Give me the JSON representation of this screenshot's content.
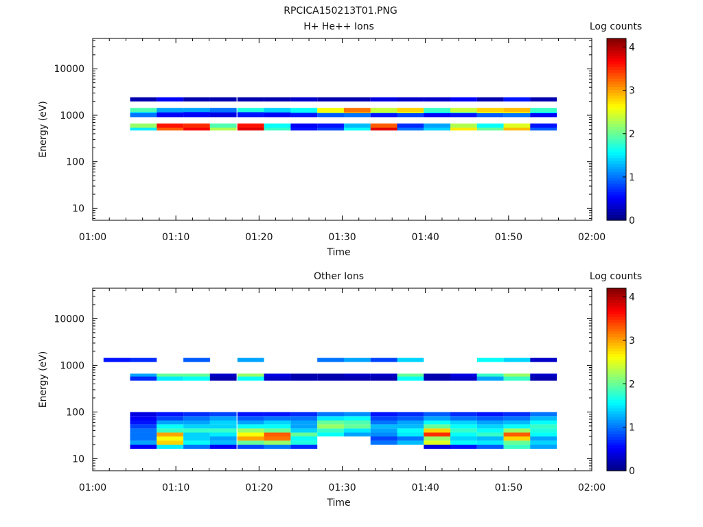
{
  "page_title": "RPCICA150213T01.PNG",
  "chart_data": [
    {
      "type": "heatmap",
      "title": "H+ He++ Ions",
      "xlabel": "Time",
      "ylabel": "Energy (eV)",
      "x_range": [
        "01:00",
        "02:00"
      ],
      "x_ticks": [
        "01:00",
        "01:10",
        "01:20",
        "01:30",
        "01:40",
        "01:50",
        "02:00"
      ],
      "y_scale": "log",
      "y_range": [
        5.5,
        45000
      ],
      "y_ticks": [
        10,
        100,
        1000,
        10000
      ],
      "y_tick_labels": [
        "10",
        "100",
        "1000",
        "10000"
      ],
      "colorbar": {
        "label": "Log counts",
        "range": [
          0,
          4.2
        ],
        "ticks": [
          0,
          1,
          2,
          3,
          4
        ],
        "tick_labels": [
          "0",
          "1",
          "2",
          "3",
          "4"
        ],
        "colormap": "jet"
      },
      "cell_start_minutes": [
        1.3,
        4.5,
        7.7,
        10.9,
        14.1,
        17.4,
        20.6,
        23.8,
        27.0,
        30.2,
        33.4,
        36.6,
        39.8,
        43.0,
        46.2,
        49.4,
        52.6,
        55.8
      ],
      "rows": [
        {
          "e": 520,
          "v": [
            0,
            1.5,
            3.3,
            3.7,
            2.3,
            3.8,
            1.8,
            0.6,
            0.8,
            1.6,
            3.8,
            1.0,
            1.4,
            2.7,
            2.0,
            2.9,
            0.9,
            0
          ]
        },
        {
          "e": 600,
          "v": [
            0,
            2.2,
            3.6,
            3.5,
            1.9,
            3.6,
            1.6,
            0.5,
            0.6,
            1.3,
            3.3,
            0.7,
            1.2,
            2.3,
            1.6,
            2.5,
            0.6,
            0
          ]
        },
        {
          "e": 1150,
          "v": [
            0,
            1.4,
            0.8,
            0.6,
            0.7,
            0.8,
            0.9,
            1.3,
            2.4,
            3.0,
            2.2,
            2.5,
            1.6,
            2.0,
            2.5,
            2.7,
            1.6,
            0
          ]
        },
        {
          "e": 1300,
          "v": [
            0,
            1.9,
            1.2,
            1.2,
            1.0,
            1.7,
            1.4,
            1.6,
            2.6,
            3.2,
            2.4,
            2.8,
            1.8,
            2.4,
            2.8,
            2.9,
            1.8,
            0
          ]
        },
        {
          "e": 1000,
          "v": [
            0,
            1.0,
            0.5,
            0.5,
            0.4,
            0.6,
            0.5,
            0.6,
            0.9,
            1.0,
            0.6,
            0.8,
            0.5,
            0.6,
            0.9,
            1.0,
            0.5,
            0
          ]
        },
        {
          "e": 2200,
          "v": [
            0,
            0.2,
            0.5,
            0.2,
            0.2,
            0.2,
            0.2,
            0.3,
            0.2,
            0.2,
            0.4,
            0.3,
            0.3,
            0.5,
            0.2,
            0.6,
            0.2,
            0
          ]
        }
      ]
    },
    {
      "type": "heatmap",
      "title": "Other Ions",
      "xlabel": "Time",
      "ylabel": "Energy (eV)",
      "x_range": [
        "01:00",
        "02:00"
      ],
      "x_ticks": [
        "01:00",
        "01:10",
        "01:20",
        "01:30",
        "01:40",
        "01:50",
        "02:00"
      ],
      "y_scale": "log",
      "y_range": [
        5.5,
        45000
      ],
      "y_ticks": [
        10,
        100,
        1000,
        10000
      ],
      "y_tick_labels": [
        "10",
        "100",
        "1000",
        "10000"
      ],
      "colorbar": {
        "label": "Log counts",
        "range": [
          0,
          4.2
        ],
        "ticks": [
          0,
          1,
          2,
          3,
          4
        ],
        "tick_labels": [
          "0",
          "1",
          "2",
          "3",
          "4"
        ],
        "colormap": "jet"
      },
      "cell_start_minutes": [
        1.3,
        4.5,
        7.7,
        10.9,
        14.1,
        17.4,
        20.6,
        23.8,
        27.0,
        30.2,
        33.4,
        36.6,
        39.8,
        43.0,
        46.2,
        49.4,
        52.6,
        55.8
      ],
      "rows": [
        {
          "e": 18,
          "v": [
            0,
            0.5,
            1.5,
            1.0,
            0.5,
            0.8,
            1.0,
            0.7,
            0,
            0,
            0,
            0,
            0.4,
            0.6,
            0.9,
            1.8,
            1.2,
            0
          ]
        },
        {
          "e": 22,
          "v": [
            0,
            1.2,
            2.8,
            1.6,
            1.3,
            2.0,
            2.2,
            1.7,
            0,
            0,
            1.0,
            1.3,
            2.5,
            1.6,
            1.5,
            2.0,
            1.4,
            0
          ]
        },
        {
          "e": 27,
          "v": [
            0,
            1.0,
            2.6,
            1.4,
            1.2,
            3.0,
            3.2,
            1.6,
            0,
            0,
            0.8,
            1.0,
            2.2,
            1.4,
            1.3,
            2.8,
            1.2,
            0
          ]
        },
        {
          "e": 33,
          "v": [
            0,
            1.0,
            3.0,
            1.4,
            1.5,
            2.6,
            3.3,
            2.0,
            1.6,
            1.2,
            1.1,
            1.5,
            3.5,
            1.6,
            1.8,
            3.3,
            1.6,
            0
          ]
        },
        {
          "e": 40,
          "v": [
            0,
            1.0,
            1.8,
            1.8,
            1.8,
            2.2,
            2.0,
            1.4,
            1.8,
            1.5,
            1.2,
            1.6,
            2.8,
            1.8,
            1.6,
            2.2,
            1.7,
            0
          ]
        },
        {
          "e": 49,
          "v": [
            0,
            0.8,
            1.6,
            1.4,
            1.4,
            1.6,
            1.6,
            1.2,
            2.2,
            2.0,
            1.3,
            1.3,
            2.0,
            1.6,
            1.4,
            1.6,
            1.8,
            0
          ]
        },
        {
          "e": 60,
          "v": [
            0,
            0.6,
            1.2,
            1.2,
            1.4,
            1.2,
            1.4,
            1.2,
            2.0,
            1.9,
            1.0,
            1.2,
            1.6,
            1.4,
            1.2,
            1.3,
            1.6,
            0
          ]
        },
        {
          "e": 73,
          "v": [
            0,
            0.5,
            0.8,
            1.0,
            1.2,
            0.9,
            1.0,
            1.0,
            1.5,
            1.6,
            0.8,
            0.9,
            1.2,
            1.0,
            0.9,
            1.0,
            1.3,
            0
          ]
        },
        {
          "e": 90,
          "v": [
            0,
            0.4,
            0.6,
            0.7,
            0.8,
            0.6,
            0.6,
            0.7,
            1.0,
            1.1,
            0.6,
            0.7,
            0.9,
            0.7,
            0.6,
            0.7,
            1.0,
            0
          ]
        },
        {
          "e": 600,
          "v": [
            0,
            1.2,
            2.0,
            2.0,
            0.3,
            2.2,
            0.4,
            0.2,
            0.2,
            0.3,
            0.3,
            2.0,
            0.2,
            0.4,
            1.8,
            2.2,
            0.3,
            0
          ]
        },
        {
          "e": 520,
          "v": [
            0,
            0.7,
            1.5,
            1.6,
            0.2,
            1.6,
            0.3,
            0.2,
            0.2,
            0.2,
            0.2,
            1.6,
            0.2,
            0.3,
            1.2,
            1.8,
            0.2,
            0
          ]
        },
        {
          "e": 1300,
          "v": [
            0.6,
            0.7,
            0,
            0.9,
            0,
            1.2,
            0,
            0,
            1.0,
            1.2,
            0.8,
            1.4,
            0,
            0,
            1.6,
            1.4,
            0.3,
            0
          ]
        }
      ]
    }
  ]
}
